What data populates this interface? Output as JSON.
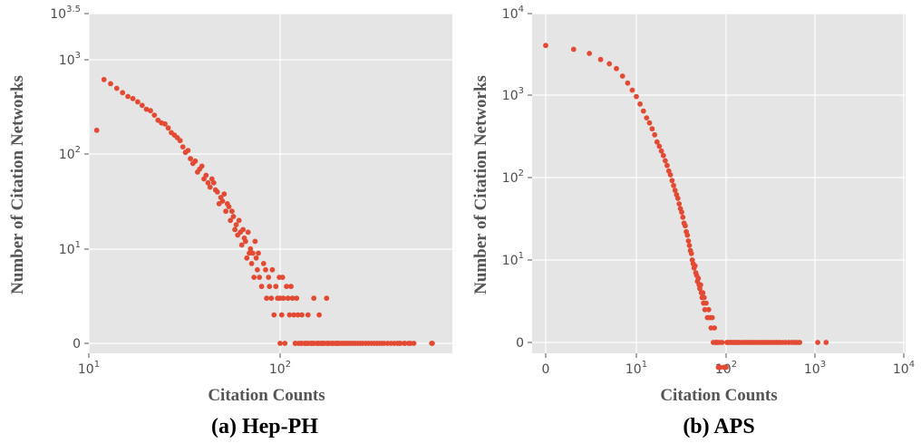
{
  "chart_data": [
    {
      "type": "scatter",
      "title": "(a) Hep-PH",
      "xlabel": "Citation Counts",
      "ylabel": "Number of Citation Networks",
      "xscale": "log",
      "yscale": "log",
      "x_tick_labels": [
        {
          "base": "10",
          "exp": "1"
        },
        {
          "base": "10",
          "exp": "2"
        }
      ],
      "y_tick_labels": [
        {
          "base": "0",
          "exp": ""
        },
        {
          "base": "10",
          "exp": "1"
        },
        {
          "base": "10",
          "exp": "2"
        },
        {
          "base": "10",
          "exp": "3"
        },
        {
          "base": "10",
          "exp": "3.5"
        }
      ],
      "grid": true,
      "marker_color": "#e24a33",
      "background": "#e5e5e5",
      "points": [
        [
          11,
          180
        ],
        [
          12,
          620
        ],
        [
          13,
          560
        ],
        [
          14,
          500
        ],
        [
          15,
          450
        ],
        [
          16,
          410
        ],
        [
          17,
          390
        ],
        [
          18,
          360
        ],
        [
          19,
          330
        ],
        [
          20,
          300
        ],
        [
          21,
          290
        ],
        [
          22,
          260
        ],
        [
          23,
          230
        ],
        [
          24,
          215
        ],
        [
          25,
          210
        ],
        [
          26,
          190
        ],
        [
          27,
          170
        ],
        [
          28,
          160
        ],
        [
          29,
          150
        ],
        [
          30,
          140
        ],
        [
          31,
          120
        ],
        [
          32,
          105
        ],
        [
          33,
          110
        ],
        [
          34,
          90
        ],
        [
          35,
          80
        ],
        [
          36,
          85
        ],
        [
          37,
          65
        ],
        [
          38,
          70
        ],
        [
          39,
          75
        ],
        [
          40,
          55
        ],
        [
          41,
          60
        ],
        [
          42,
          50
        ],
        [
          43,
          45
        ],
        [
          44,
          55
        ],
        [
          45,
          50
        ],
        [
          46,
          42
        ],
        [
          47,
          40
        ],
        [
          48,
          30
        ],
        [
          49,
          35
        ],
        [
          50,
          32
        ],
        [
          51,
          38
        ],
        [
          52,
          25
        ],
        [
          53,
          30
        ],
        [
          54,
          28
        ],
        [
          55,
          20
        ],
        [
          56,
          25
        ],
        [
          57,
          22
        ],
        [
          58,
          16
        ],
        [
          59,
          18
        ],
        [
          60,
          14
        ],
        [
          61,
          20
        ],
        [
          62,
          15
        ],
        [
          63,
          11
        ],
        [
          64,
          16
        ],
        [
          65,
          13
        ],
        [
          66,
          12
        ],
        [
          67,
          8
        ],
        [
          68,
          15
        ],
        [
          69,
          9
        ],
        [
          70,
          10
        ],
        [
          71,
          7
        ],
        [
          72,
          9
        ],
        [
          73,
          5
        ],
        [
          74,
          12
        ],
        [
          75,
          8
        ],
        [
          76,
          6
        ],
        [
          77,
          9
        ],
        [
          78,
          5
        ],
        [
          80,
          4
        ],
        [
          82,
          7
        ],
        [
          84,
          6
        ],
        [
          85,
          3
        ],
        [
          87,
          5
        ],
        [
          88,
          4
        ],
        [
          90,
          3
        ],
        [
          91,
          6
        ],
        [
          93,
          2
        ],
        [
          95,
          4
        ],
        [
          97,
          3
        ],
        [
          99,
          5
        ],
        [
          100,
          3
        ],
        [
          102,
          2
        ],
        [
          103,
          5
        ],
        [
          104,
          3
        ],
        [
          106,
          1
        ],
        [
          108,
          4
        ],
        [
          110,
          3
        ],
        [
          112,
          2
        ],
        [
          114,
          4
        ],
        [
          116,
          3
        ],
        [
          118,
          2
        ],
        [
          120,
          1
        ],
        [
          122,
          3
        ],
        [
          124,
          2
        ],
        [
          128,
          1
        ],
        [
          130,
          2
        ],
        [
          135,
          1
        ],
        [
          140,
          2
        ],
        [
          145,
          1
        ],
        [
          150,
          3
        ],
        [
          160,
          2
        ],
        [
          165,
          1
        ],
        [
          175,
          3
        ],
        [
          200,
          1
        ],
        [
          205,
          0
        ],
        [
          210,
          0
        ],
        [
          215,
          0
        ],
        [
          220,
          0
        ],
        [
          225,
          0
        ],
        [
          230,
          0
        ],
        [
          236,
          0
        ],
        [
          242,
          0
        ],
        [
          248,
          0
        ],
        [
          255,
          0
        ],
        [
          262,
          0
        ],
        [
          270,
          0
        ],
        [
          280,
          0
        ],
        [
          290,
          0
        ],
        [
          300,
          0
        ],
        [
          310,
          0
        ],
        [
          320,
          0
        ],
        [
          330,
          0
        ],
        [
          340,
          0
        ],
        [
          350,
          0
        ],
        [
          365,
          0
        ],
        [
          380,
          0
        ],
        [
          395,
          0
        ],
        [
          410,
          0
        ],
        [
          425,
          0
        ],
        [
          445,
          0
        ],
        [
          470,
          0
        ],
        [
          500,
          0
        ],
        [
          620,
          0
        ],
        [
          625,
          0
        ],
        [
          100,
          0
        ],
        [
          120,
          0
        ],
        [
          130,
          0
        ],
        [
          140,
          0
        ],
        [
          150,
          0
        ],
        [
          160,
          0
        ],
        [
          170,
          0
        ],
        [
          180,
          0
        ],
        [
          190,
          0
        ],
        [
          200,
          0
        ],
        [
          135,
          0
        ],
        [
          145,
          0
        ],
        [
          155,
          0
        ],
        [
          165,
          0
        ],
        [
          175,
          0
        ],
        [
          185,
          0
        ],
        [
          195,
          0
        ],
        [
          125,
          0
        ],
        [
          138,
          0
        ],
        [
          148,
          0
        ],
        [
          158,
          0
        ],
        [
          168,
          0
        ],
        [
          178,
          0
        ],
        [
          188,
          0
        ],
        [
          198,
          0
        ],
        [
          420,
          0
        ],
        [
          450,
          0
        ],
        [
          480,
          0
        ]
      ]
    },
    {
      "type": "scatter",
      "title": "(b) APS",
      "xlabel": "Citation Counts",
      "ylabel": "Number of Citation Networks",
      "xscale": "log",
      "yscale": "log",
      "x_tick_labels": [
        {
          "base": "0",
          "exp": ""
        },
        {
          "base": "10",
          "exp": "1"
        },
        {
          "base": "10",
          "exp": "2"
        },
        {
          "base": "10",
          "exp": "3"
        },
        {
          "base": "10",
          "exp": "4"
        }
      ],
      "y_tick_labels": [
        {
          "base": "0",
          "exp": ""
        },
        {
          "base": "10",
          "exp": "1"
        },
        {
          "base": "10",
          "exp": "2"
        },
        {
          "base": "10",
          "exp": "3"
        },
        {
          "base": "10",
          "exp": "4"
        }
      ],
      "grid": true,
      "marker_color": "#e24a33",
      "background": "#e5e5e5",
      "points": [
        [
          0,
          4000
        ],
        [
          2,
          3600
        ],
        [
          3,
          3200
        ],
        [
          4,
          2700
        ],
        [
          5,
          2400
        ],
        [
          6,
          2100
        ],
        [
          7,
          1700
        ],
        [
          8,
          1400
        ],
        [
          9,
          1150
        ],
        [
          10,
          960
        ],
        [
          11,
          780
        ],
        [
          12,
          640
        ],
        [
          13,
          530
        ],
        [
          14,
          460
        ],
        [
          15,
          390
        ],
        [
          16,
          330
        ],
        [
          17,
          270
        ],
        [
          18,
          240
        ],
        [
          19,
          210
        ],
        [
          20,
          185
        ],
        [
          21,
          160
        ],
        [
          22,
          140
        ],
        [
          23,
          120
        ],
        [
          24,
          108
        ],
        [
          25,
          92
        ],
        [
          26,
          80
        ],
        [
          27,
          70
        ],
        [
          28,
          62
        ],
        [
          29,
          56
        ],
        [
          30,
          48
        ],
        [
          31,
          42
        ],
        [
          32,
          38
        ],
        [
          33,
          33
        ],
        [
          34,
          28
        ],
        [
          35,
          26
        ],
        [
          36,
          22
        ],
        [
          37,
          20
        ],
        [
          38,
          17
        ],
        [
          39,
          15
        ],
        [
          40,
          13
        ],
        [
          41,
          12
        ],
        [
          42,
          10
        ],
        [
          43,
          9
        ],
        [
          44,
          8
        ],
        [
          45,
          8.5
        ],
        [
          46,
          7
        ],
        [
          47,
          6.5
        ],
        [
          48,
          5.5
        ],
        [
          49,
          6
        ],
        [
          50,
          5
        ],
        [
          51,
          4.5
        ],
        [
          52,
          5
        ],
        [
          53,
          4
        ],
        [
          54,
          3.5
        ],
        [
          55,
          4
        ],
        [
          56,
          3
        ],
        [
          57,
          3.5
        ],
        [
          58,
          2.5
        ],
        [
          60,
          3
        ],
        [
          62,
          2
        ],
        [
          64,
          2.5
        ],
        [
          66,
          2
        ],
        [
          68,
          1.5
        ],
        [
          70,
          2
        ],
        [
          72,
          1
        ],
        [
          74,
          1.5
        ],
        [
          76,
          1
        ],
        [
          78,
          1
        ],
        [
          80,
          1
        ],
        [
          82,
          0.5
        ],
        [
          84,
          1
        ],
        [
          86,
          0.5
        ],
        [
          90,
          1
        ],
        [
          95,
          0.5
        ],
        [
          100,
          0.5
        ],
        [
          102,
          0
        ],
        [
          105,
          0
        ],
        [
          110,
          0
        ],
        [
          115,
          0
        ],
        [
          120,
          0
        ],
        [
          125,
          0
        ],
        [
          130,
          0
        ],
        [
          135,
          0
        ],
        [
          140,
          0
        ],
        [
          150,
          0
        ],
        [
          160,
          0
        ],
        [
          170,
          0
        ],
        [
          180,
          0
        ],
        [
          190,
          0
        ],
        [
          200,
          0
        ],
        [
          210,
          0
        ],
        [
          225,
          0
        ],
        [
          240,
          0
        ],
        [
          255,
          0
        ],
        [
          270,
          0
        ],
        [
          285,
          0
        ],
        [
          300,
          0
        ],
        [
          320,
          0
        ],
        [
          340,
          0
        ],
        [
          360,
          0
        ],
        [
          380,
          0
        ],
        [
          400,
          0
        ],
        [
          430,
          0
        ],
        [
          460,
          0
        ],
        [
          500,
          0
        ],
        [
          540,
          0
        ],
        [
          580,
          0
        ],
        [
          620,
          0
        ],
        [
          660,
          0
        ],
        [
          1050,
          0
        ],
        [
          1300,
          0
        ]
      ]
    }
  ]
}
